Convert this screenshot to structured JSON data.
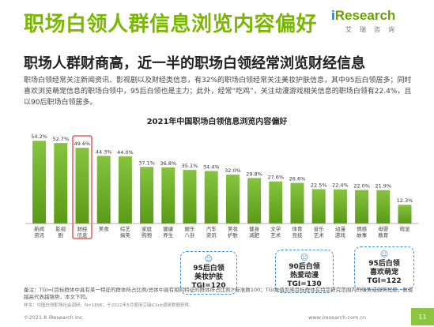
{
  "title": "职场白领人群信息浏览内容偏好",
  "logo": {
    "mark": "i",
    "word": "Research",
    "sub": "艾瑞咨询"
  },
  "subtitle": "职场人群财商高，近一半的职场白领经常浏览财经信息",
  "body_text": "职场白领经常关注新闻资讯、影视剧以及财经类信息，有32%的职场白领经常关注美妆护肤信息，其中95后白领居多；同时喜欢浏览萌宠信息的职场白领中，95后白领也是主力；此外，经常“吃鸡”，关注动漫游戏相关信息的职场白领有22.4%，且以90后职场白领居多。",
  "chart_data": {
    "type": "bar",
    "title": "2021年中国职场白领信息浏览内容偏好",
    "categories": [
      "新闻\n资讯",
      "影视\n剧",
      "财经\n信息",
      "美食",
      "综艺\n搞笑",
      "家庭\n购物",
      "健康\n养生",
      "娱乐\n八卦",
      "汽车\n资讯",
      "美妆\n护肤",
      "健身\n减肥",
      "文学\n艺术",
      "体育\n竞技",
      "音乐\n艺术",
      "动漫\n游戏",
      "情感\n故事",
      "母婴\n教育",
      "萌宠"
    ],
    "values": [
      54.2,
      52.7,
      49.6,
      44.3,
      44.0,
      37.1,
      36.8,
      35.1,
      34.4,
      32.0,
      29.8,
      27.6,
      26.6,
      22.5,
      22.4,
      22.0,
      21.9,
      12.3
    ],
    "value_labels": [
      "54.2%",
      "52.7%",
      "49.6%",
      "44.3%",
      "44.0%",
      "37.1%",
      "36.8%",
      "35.1%",
      "34.4%",
      "32.0%",
      "29.8%",
      "27.6%",
      "26.6%",
      "22.5%",
      "22.4%",
      "22.0%",
      "21.9%",
      "12.3%"
    ],
    "highlight_index": 2,
    "ylim": [
      0,
      60
    ],
    "grid": false,
    "colors": {
      "bar_top": "#86c440",
      "bar_bottom": "#5a9a17",
      "highlight_border": "#e0413a"
    }
  },
  "callouts": [
    {
      "line1": "95后白领",
      "line2": "美妆护肤",
      "line3": "TGI=120"
    },
    {
      "line1": "90后白领",
      "line2": "热爱动漫",
      "line3": "TGI=130"
    },
    {
      "line1": "95后白领",
      "line2": "喜欢萌宠",
      "line3": "TGI=122"
    }
  ],
  "footnote": "备注：TGI=[目标群体中具有某一特征的群体所占比例/总体中具有相同特征的群体所占比例]*标准数100；TGI数值反映目标群体在特定研究范围内的强势或弱势程度，数值越高代表越强势，本文下同。",
  "source": "样本：中国白领职场社会调研，N=1896；于2021年5月使用艾瑞iClick调研数据获得。",
  "copyright": "©2021.8 iResearch Inc.",
  "site": "www.iresearch.com.cn",
  "page_number": "11",
  "accent": "#7ab800"
}
